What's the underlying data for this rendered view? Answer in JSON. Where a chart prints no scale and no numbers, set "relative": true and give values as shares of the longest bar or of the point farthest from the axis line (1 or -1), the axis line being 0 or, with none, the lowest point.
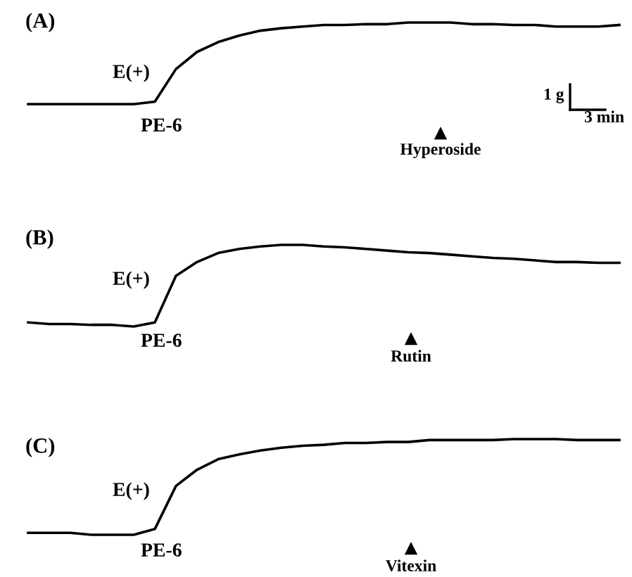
{
  "chart_data": [
    {
      "type": "line",
      "relative": true,
      "title": "(A)",
      "line_style": "solid",
      "categories": [
        null,
        null,
        null,
        null,
        null,
        null,
        null,
        null,
        null,
        null,
        null,
        null,
        null,
        null,
        null,
        null,
        null,
        null,
        null,
        null,
        null,
        null,
        null,
        null,
        null,
        null,
        null,
        null,
        null
      ],
      "series": [
        {
          "color": "#000000",
          "values": [
            0,
            0,
            0,
            0,
            0,
            0,
            0.03,
            0.43,
            0.64,
            0.76,
            0.84,
            0.9,
            0.93,
            0.95,
            0.97,
            0.97,
            0.98,
            0.98,
            1,
            1,
            1,
            0.98,
            0.98,
            0.97,
            0.97,
            0.95,
            0.95,
            0.95,
            0.97
          ]
        }
      ],
      "annotations": [
        "E(+)",
        "PE-6",
        "Hyperoside",
        "1 g",
        "3 min"
      ]
    },
    {
      "type": "line",
      "relative": true,
      "title": "(B)",
      "line_style": "solid",
      "categories": [
        null,
        null,
        null,
        null,
        null,
        null,
        null,
        null,
        null,
        null,
        null,
        null,
        null,
        null,
        null,
        null,
        null,
        null,
        null,
        null,
        null,
        null,
        null,
        null,
        null,
        null,
        null,
        null,
        null
      ],
      "series": [
        {
          "color": "#000000",
          "values": [
            0.05,
            0.03,
            0.03,
            0.02,
            0.02,
            0,
            0.05,
            0.62,
            0.79,
            0.9,
            0.95,
            0.98,
            1,
            1,
            0.98,
            0.97,
            0.95,
            0.93,
            0.91,
            0.9,
            0.88,
            0.86,
            0.84,
            0.83,
            0.81,
            0.79,
            0.79,
            0.78,
            0.78
          ]
        }
      ],
      "annotations": [
        "E(+)",
        "PE-6",
        "Rutin"
      ]
    },
    {
      "type": "line",
      "relative": true,
      "title": "(C)",
      "line_style": "solid",
      "categories": [
        null,
        null,
        null,
        null,
        null,
        null,
        null,
        null,
        null,
        null,
        null,
        null,
        null,
        null,
        null,
        null,
        null,
        null,
        null,
        null,
        null,
        null,
        null,
        null,
        null,
        null,
        null,
        null,
        null
      ],
      "series": [
        {
          "color": "#000000",
          "values": [
            0.02,
            0.02,
            0.02,
            0,
            0,
            0,
            0.06,
            0.51,
            0.68,
            0.79,
            0.84,
            0.88,
            0.91,
            0.93,
            0.94,
            0.96,
            0.96,
            0.97,
            0.97,
            0.99,
            0.99,
            0.99,
            0.99,
            1,
            1,
            1,
            0.99,
            0.99,
            0.99
          ]
        }
      ],
      "annotations": [
        "E(+)",
        "PE-6",
        "Vitexin"
      ]
    }
  ]
}
